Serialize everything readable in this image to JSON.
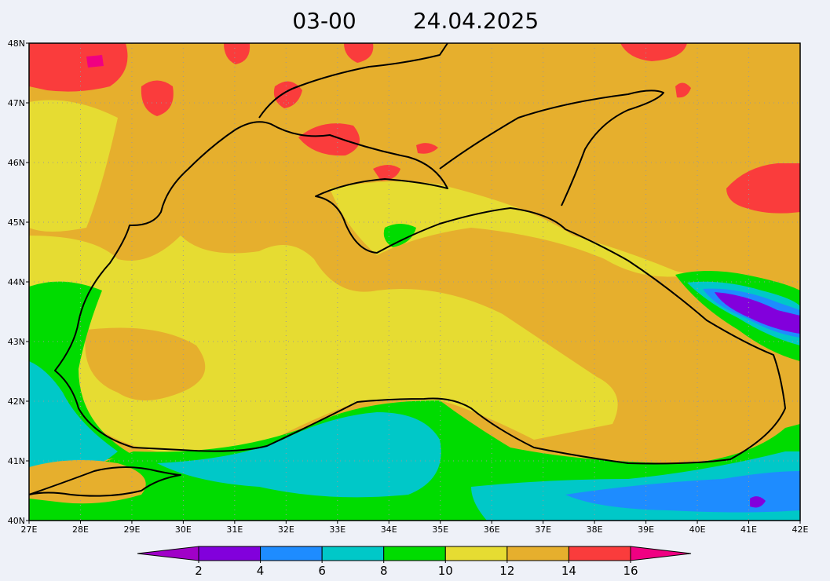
{
  "title": {
    "time": "03-00",
    "date": "24.04.2025"
  },
  "map": {
    "lon_labels": [
      "27E",
      "28E",
      "29E",
      "30E",
      "31E",
      "32E",
      "33E",
      "34E",
      "35E",
      "36E",
      "37E",
      "38E",
      "39E",
      "40E",
      "41E",
      "42E"
    ],
    "lat_labels": [
      "40N",
      "41N",
      "42N",
      "43N",
      "44N",
      "45N",
      "46N",
      "47N",
      "48N"
    ]
  },
  "colorbar": {
    "ticks": [
      2,
      4,
      6,
      8,
      10,
      12,
      14,
      16
    ],
    "colors": [
      "#a000c8",
      "#8200dc",
      "#1e8cff",
      "#00c8c8",
      "#00dc00",
      "#e6dc32",
      "#e6af2d",
      "#fa3c3c",
      "#f00082"
    ]
  }
}
